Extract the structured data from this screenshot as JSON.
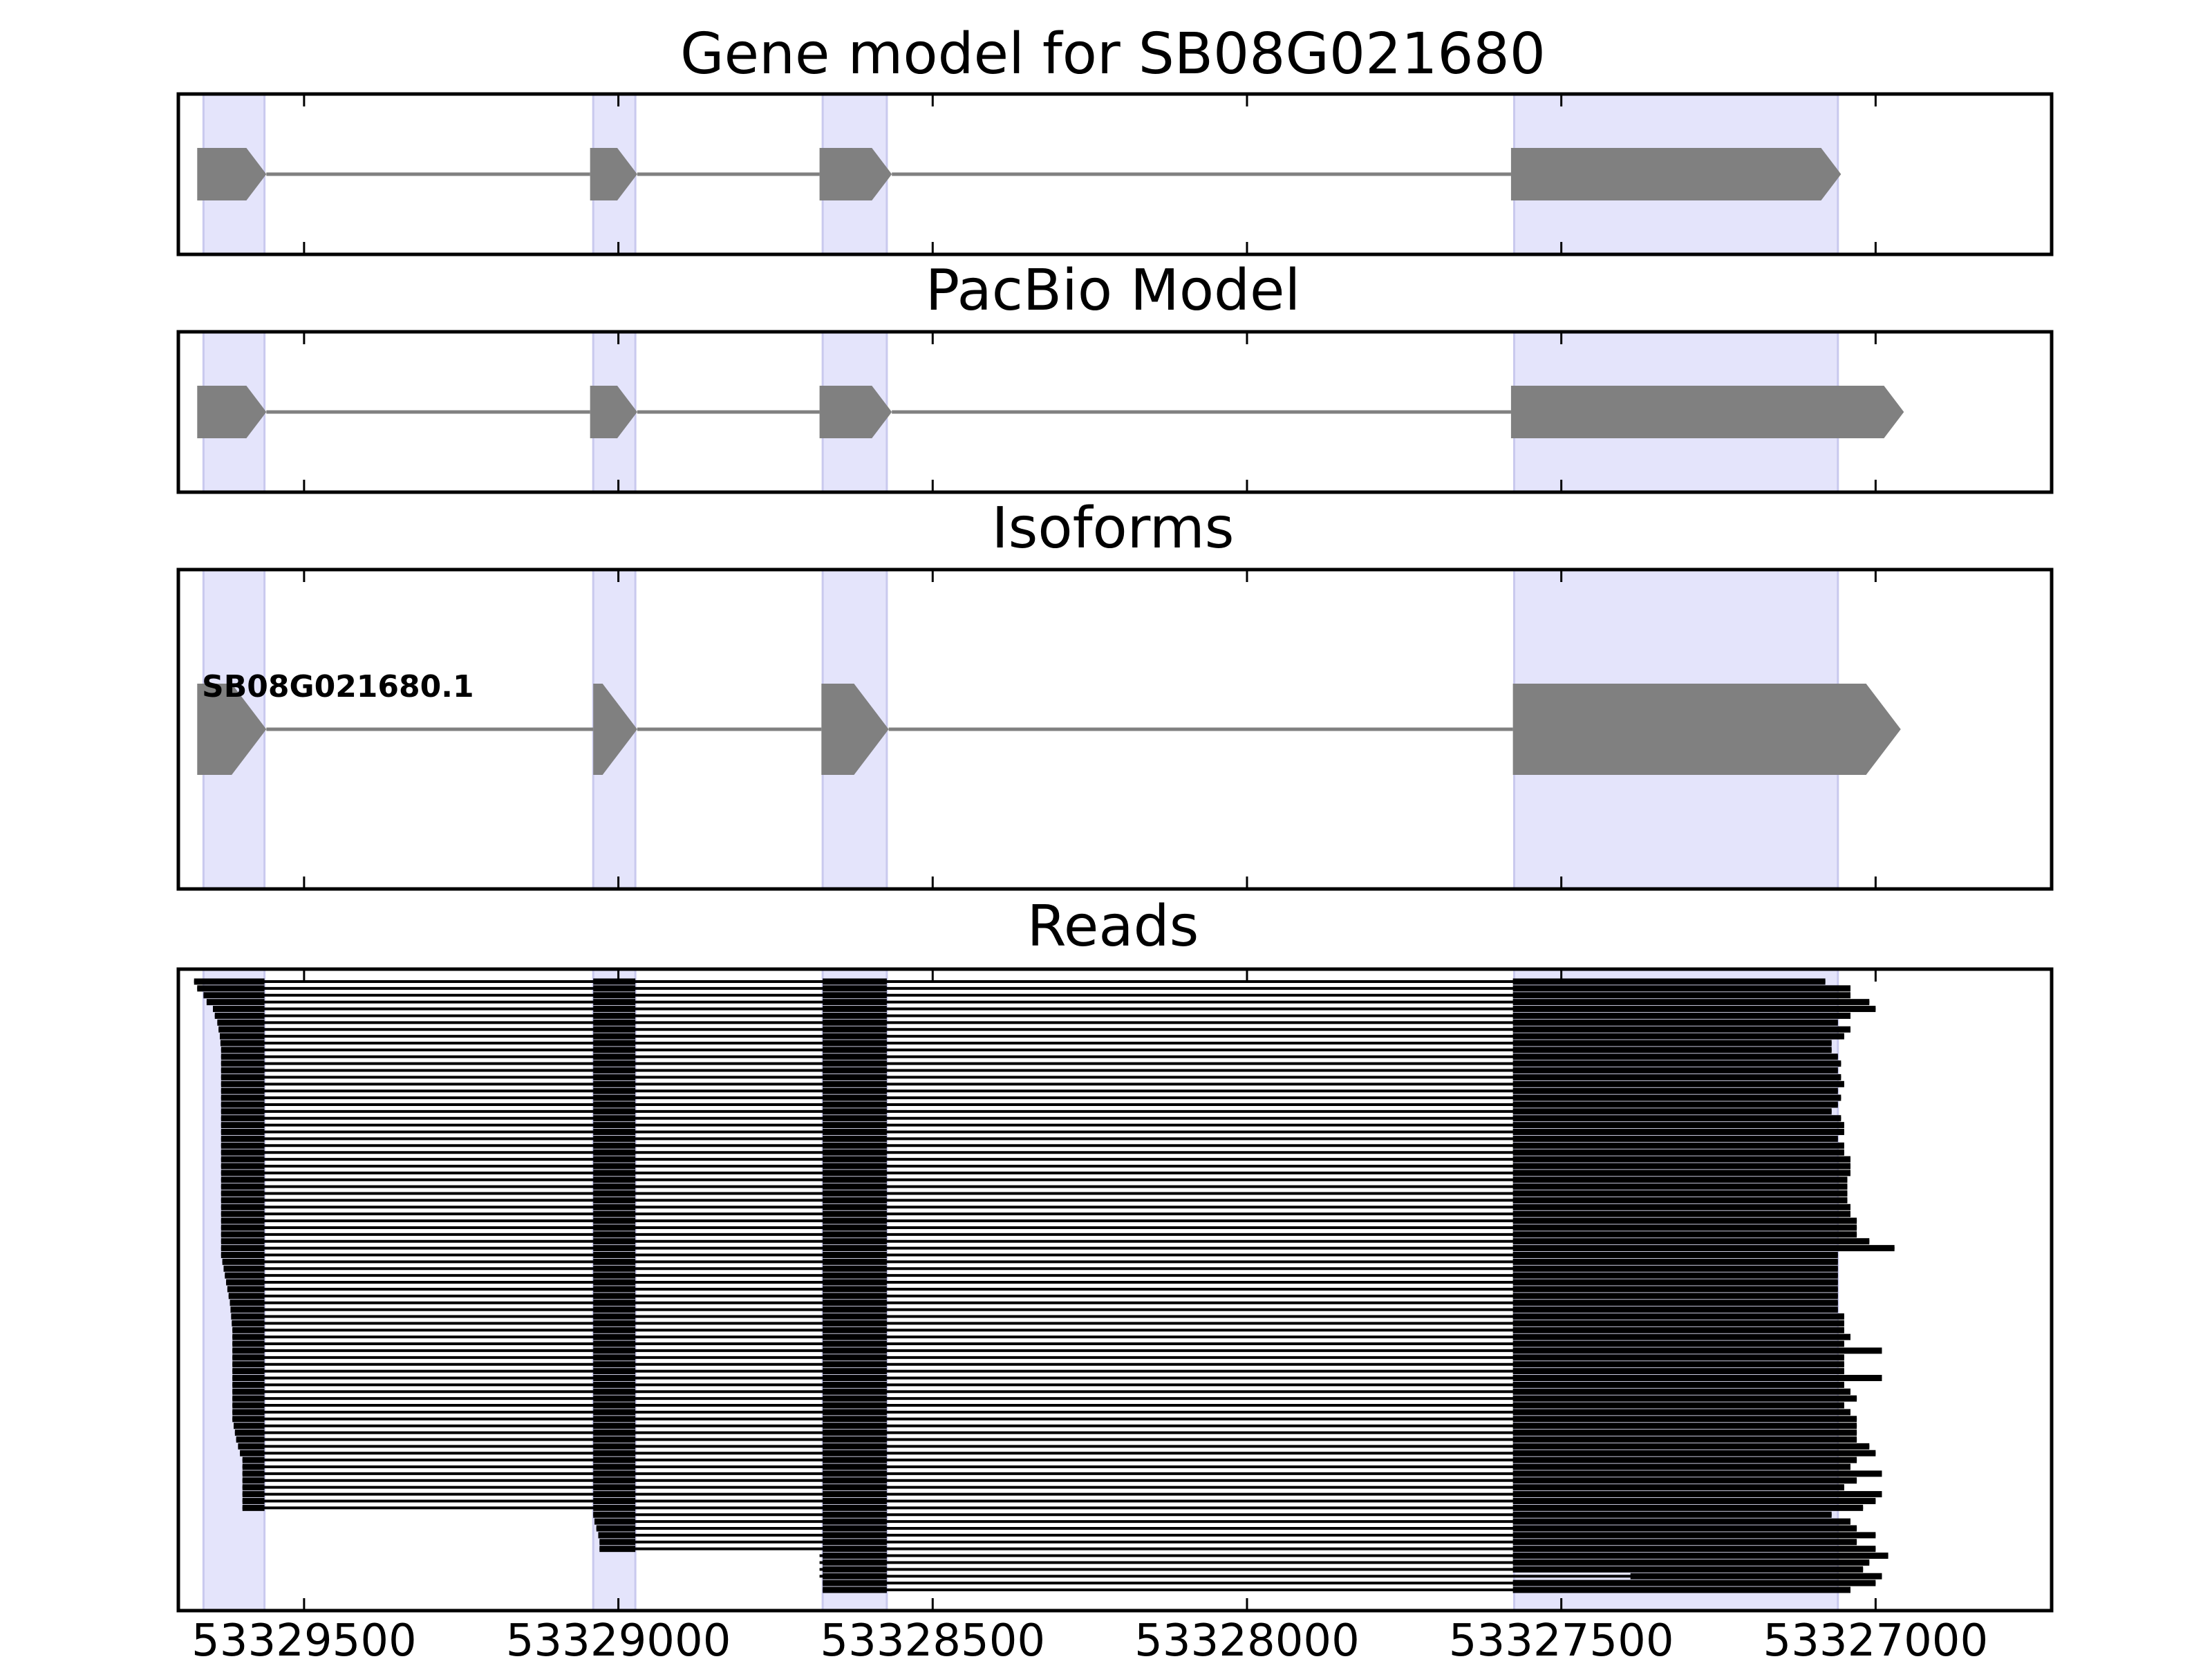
{
  "chart_data": {
    "type": "gene_structure",
    "xaxis": {
      "reversed": true,
      "xlim": [
        53329700,
        53326720
      ],
      "ticks": [
        53329500,
        53329000,
        53328500,
        53328000,
        53327500,
        53327000
      ],
      "tick_labels": [
        "53329500",
        "53329000",
        "53328500",
        "53328000",
        "53327500",
        "53327000"
      ]
    },
    "highlight_color": "#e4e4fb",
    "exon_color": "#808080",
    "read_color": "#000000",
    "exon_regions": [
      [
        53329660,
        53329563
      ],
      [
        53329040,
        53328973
      ],
      [
        53328675,
        53328573
      ],
      [
        53327575,
        53327060
      ]
    ],
    "panels": [
      {
        "title": "Gene model for SB08G021680",
        "models": [
          {
            "label": "",
            "exons": [
              [
                53329670,
                53329560
              ],
              [
                53329045,
                53328970
              ],
              [
                53328680,
                53328565
              ],
              [
                53327580,
                53327055
              ]
            ]
          }
        ]
      },
      {
        "title": "PacBio Model",
        "models": [
          {
            "label": "",
            "exons": [
              [
                53329670,
                53329560
              ],
              [
                53329045,
                53328970
              ],
              [
                53328680,
                53328565
              ],
              [
                53327580,
                53326955
              ]
            ]
          }
        ]
      },
      {
        "title": "Isoforms",
        "models": [
          {
            "label": "SB08G021680.1",
            "exons": [
              [
                53329670,
                53329560
              ],
              [
                53329040,
                53328970
              ],
              [
                53328677,
                53328570
              ],
              [
                53327577,
                53326960
              ]
            ]
          }
        ]
      },
      {
        "title": "Reads",
        "reads": {
          "count": 90,
          "intron_to": 53327577,
          "starts": [
            53329675,
            53329670,
            53329660,
            53329655,
            53329645,
            53329642,
            53329638,
            53329636,
            53329634,
            53329633,
            53329632,
            53329632,
            53329632,
            53329632,
            53329632,
            53329632,
            53329632,
            53329632,
            53329632,
            53329632,
            53329632,
            53329632,
            53329632,
            53329632,
            53329632,
            53329632,
            53329632,
            53329632,
            53329632,
            53329632,
            53329632,
            53329632,
            53329632,
            53329632,
            53329632,
            53329632,
            53329632,
            53329632,
            53329632,
            53329632,
            53329632,
            53329630,
            53329628,
            53329626,
            53329624,
            53329622,
            53329620,
            53329618,
            53329617,
            53329616,
            53329615,
            53329614,
            53329614,
            53329614,
            53329614,
            53329614,
            53329614,
            53329614,
            53329614,
            53329614,
            53329614,
            53329614,
            53329614,
            53329614,
            53329614,
            53329612,
            53329610,
            53329608,
            53329605,
            53329602,
            53329598,
            53329598,
            53329598,
            53329598,
            53329598,
            53329598,
            53329598,
            53329598,
            53329040,
            53329038,
            53329035,
            53329032,
            53329030,
            53329030,
            53328680,
            53328680,
            53328680,
            53328680,
            53328675,
            53328675
          ],
          "ends": [
            53327080,
            53327040,
            53327040,
            53327010,
            53327000,
            53327040,
            53327060,
            53327040,
            53327050,
            53327070,
            53327070,
            53327060,
            53327055,
            53327060,
            53327055,
            53327050,
            53327060,
            53327055,
            53327060,
            53327070,
            53327055,
            53327050,
            53327050,
            53327060,
            53327050,
            53327050,
            53327040,
            53327040,
            53327040,
            53327045,
            53327045,
            53327045,
            53327045,
            53327040,
            53327040,
            53327030,
            53327030,
            53327030,
            53327010,
            53326970,
            53327060,
            53327060,
            53327060,
            53327060,
            53327060,
            53327060,
            53327060,
            53327060,
            53327060,
            53327050,
            53327050,
            53327050,
            53327040,
            53327050,
            53326990,
            53327050,
            53327050,
            53327050,
            53326990,
            53327050,
            53327040,
            53327030,
            53327050,
            53327040,
            53327030,
            53327030,
            53327030,
            53327030,
            53327010,
            53327000,
            53327030,
            53327040,
            53326990,
            53327030,
            53327050,
            53326990,
            53327000,
            53327020,
            53327070,
            53327040,
            53327030,
            53327000,
            53327030,
            53327000,
            53326980,
            53327010,
            53327020,
            53326990,
            53327000,
            53327040
          ],
          "late_starts": [
            [
              87,
              53327390
            ]
          ]
        }
      }
    ]
  }
}
